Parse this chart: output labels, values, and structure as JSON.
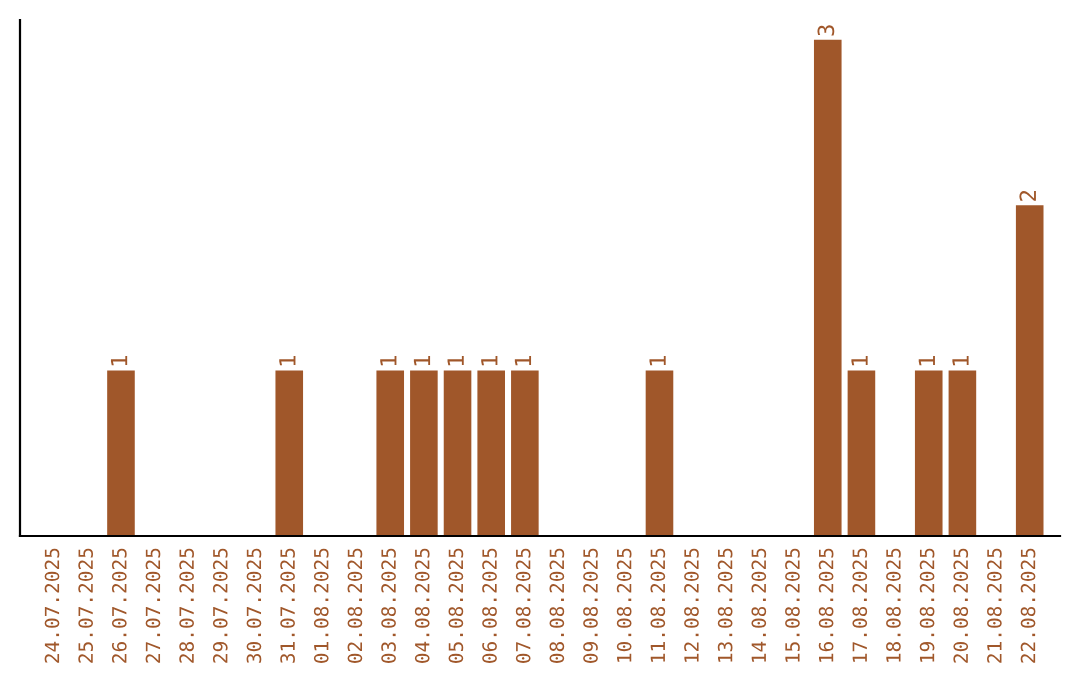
{
  "chart_data": {
    "type": "bar",
    "categories": [
      "24.07.2025",
      "25.07.2025",
      "26.07.2025",
      "27.07.2025",
      "28.07.2025",
      "29.07.2025",
      "30.07.2025",
      "31.07.2025",
      "01.08.2025",
      "02.08.2025",
      "03.08.2025",
      "04.08.2025",
      "05.08.2025",
      "06.08.2025",
      "07.08.2025",
      "08.08.2025",
      "09.08.2025",
      "10.08.2025",
      "11.08.2025",
      "12.08.2025",
      "13.08.2025",
      "14.08.2025",
      "15.08.2025",
      "16.08.2025",
      "17.08.2025",
      "18.08.2025",
      "19.08.2025",
      "20.08.2025",
      "21.08.2025",
      "22.08.2025"
    ],
    "values": [
      0,
      0,
      1,
      0,
      0,
      0,
      0,
      1,
      0,
      0,
      1,
      1,
      1,
      1,
      1,
      0,
      0,
      0,
      1,
      0,
      0,
      0,
      0,
      3,
      1,
      0,
      1,
      1,
      0,
      2
    ],
    "value_labels": [
      null,
      null,
      "1",
      null,
      null,
      null,
      null,
      "1",
      null,
      null,
      "1",
      "1",
      "1",
      "1",
      "1",
      null,
      null,
      null,
      "1",
      null,
      null,
      null,
      null,
      "3",
      "1",
      null,
      "1",
      "1",
      null,
      "2"
    ],
    "color": "#a0572a",
    "tick_labels": "x",
    "grid": false,
    "legend": false
  }
}
